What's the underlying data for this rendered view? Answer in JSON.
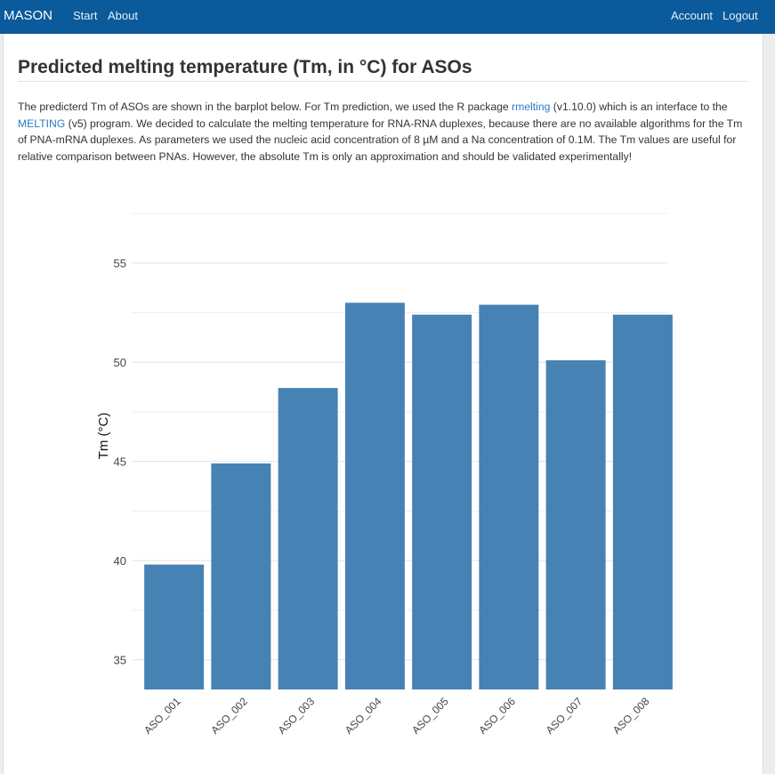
{
  "navbar": {
    "brand": "MASON",
    "links": [
      "Start",
      "About"
    ],
    "right_links": [
      "Account",
      "Logout"
    ]
  },
  "page": {
    "title": "Predicted melting temperature (Tm, in °C) for ASOs",
    "intro": {
      "p1": "The predicterd Tm of ASOs are shown in the barplot below. For Tm prediction, we used the R package ",
      "link1": "rmelting",
      "p2": " (v1.10.0) which is an interface to the ",
      "link2": "MELTING",
      "p3": " (v5) program. We decided to calculate the melting temperature for RNA-RNA duplexes, because there are no available algorithms for the Tm of PNA-mRNA duplexes. As parameters we used the nucleic acid concentration of 8 µM and a Na concentration of 0.1M. The Tm values are useful for relative comparison between PNAs. However, the absolute Tm is only an approximation and should be validated experimentally!"
    }
  },
  "chart_data": {
    "type": "bar",
    "categories": [
      "ASO_001",
      "ASO_002",
      "ASO_003",
      "ASO_004",
      "ASO_005",
      "ASO_006",
      "ASO_007",
      "ASO_008"
    ],
    "values": [
      39.8,
      44.9,
      48.7,
      53.0,
      52.4,
      52.9,
      50.1,
      52.4
    ],
    "ylabel": "Tm (°C)",
    "xlabel": "",
    "yticks": [
      35,
      40,
      45,
      50,
      55
    ],
    "ylim": [
      33.5,
      57.5
    ],
    "grid": true,
    "bar_color": "#4682b4"
  }
}
